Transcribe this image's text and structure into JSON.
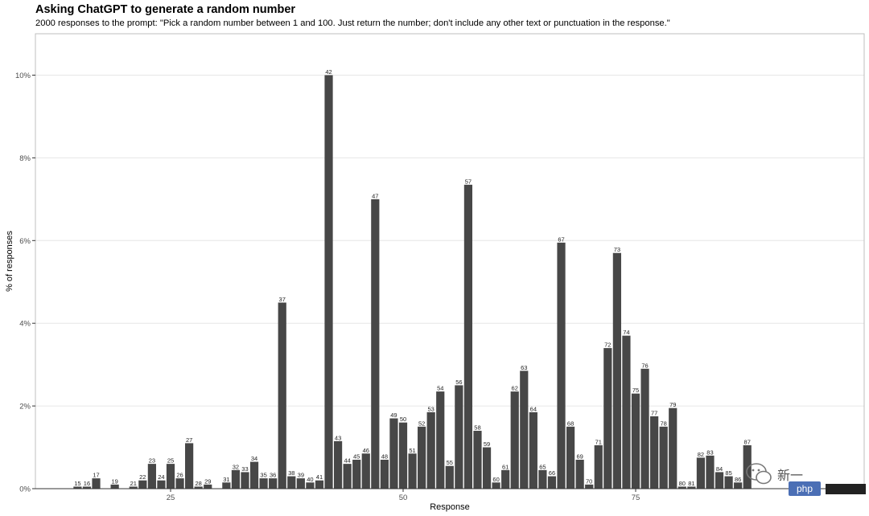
{
  "chart_data": {
    "type": "bar",
    "title": "Asking ChatGPT to generate a random number",
    "subtitle": "2000 responses to the prompt: \"Pick a random number between 1 and 100. Just return the number; don't include any other text or punctuation in the response.\"",
    "xlabel": "Response",
    "ylabel": "% of responses",
    "xlim": [
      10,
      99
    ],
    "ylim": [
      0,
      10.5
    ],
    "x_ticks": [
      25,
      50,
      75
    ],
    "y_ticks": [
      0,
      2,
      4,
      6,
      8,
      10
    ],
    "y_tick_labels": [
      "0%",
      "2%",
      "4%",
      "6%",
      "8%",
      "10%"
    ],
    "grid": true,
    "legend": "none",
    "bar_color": "#474747",
    "x": [
      15,
      16,
      17,
      19,
      21,
      22,
      23,
      24,
      25,
      26,
      27,
      28,
      29,
      31,
      32,
      33,
      34,
      35,
      36,
      37,
      38,
      39,
      40,
      41,
      42,
      43,
      44,
      45,
      46,
      47,
      48,
      49,
      50,
      51,
      52,
      53,
      54,
      55,
      56,
      57,
      58,
      59,
      60,
      61,
      62,
      63,
      64,
      65,
      66,
      67,
      68,
      69,
      70,
      71,
      72,
      73,
      74,
      75,
      76,
      77,
      78,
      79,
      80,
      81,
      82,
      83,
      84,
      85,
      86,
      87
    ],
    "values": [
      0.05,
      0.05,
      0.25,
      0.1,
      0.05,
      0.2,
      0.6,
      0.2,
      0.6,
      0.25,
      1.1,
      0.05,
      0.1,
      0.15,
      0.45,
      0.4,
      0.65,
      0.25,
      0.25,
      4.5,
      0.3,
      0.25,
      0.15,
      0.2,
      10.0,
      1.15,
      0.6,
      0.7,
      0.85,
      7.0,
      0.7,
      1.7,
      1.6,
      0.85,
      1.5,
      1.85,
      2.35,
      0.55,
      2.5,
      7.35,
      1.4,
      1.0,
      0.15,
      0.45,
      2.35,
      2.85,
      1.85,
      0.45,
      0.3,
      5.95,
      1.5,
      0.7,
      0.1,
      1.05,
      3.4,
      5.7,
      3.7,
      2.3,
      2.9,
      1.75,
      1.5,
      1.95,
      0.05,
      0.05,
      0.75,
      0.8,
      0.4,
      0.3,
      0.15,
      1.05
    ]
  },
  "watermark": {
    "text": "新一",
    "badge": "php"
  }
}
